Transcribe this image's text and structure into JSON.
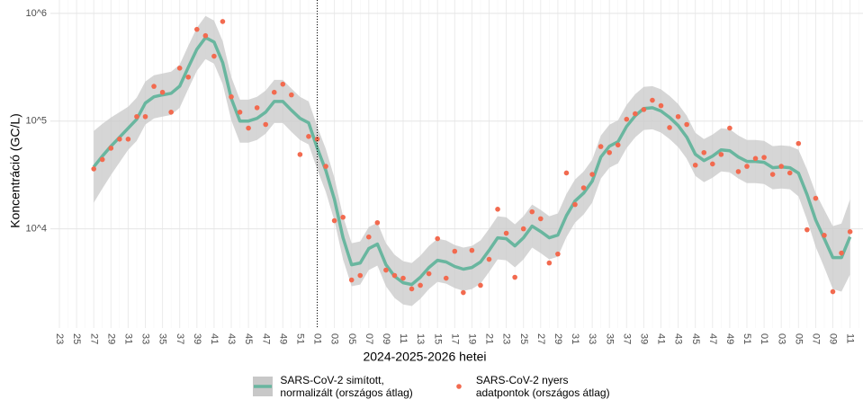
{
  "chart_data": {
    "type": "line",
    "xlabel": "2024-2025-2026 hetei",
    "ylabel": "Koncentráció (GC/L)",
    "log_scale": true,
    "grid": true,
    "legend": "bottom",
    "ylim": [
      1200,
      1330000
    ],
    "yticks": [
      {
        "value": 10000,
        "label": "10^4"
      },
      {
        "value": 100000,
        "label": "10^5"
      },
      {
        "value": 1000000,
        "label": "10^6"
      }
    ],
    "categories": [
      "23",
      null,
      "25",
      null,
      "27",
      null,
      "29",
      null,
      "31",
      null,
      "33",
      null,
      "35",
      null,
      "37",
      null,
      "39",
      null,
      "41",
      null,
      "43",
      null,
      "45",
      null,
      "47",
      null,
      "49",
      null,
      "51",
      null,
      "01",
      null,
      "03",
      null,
      "05",
      null,
      "07",
      null,
      "09",
      null,
      "11",
      null,
      "13",
      null,
      "15",
      null,
      "17",
      null,
      "19",
      null,
      "21",
      null,
      "23",
      null,
      "25",
      null,
      "27",
      null,
      "29",
      null,
      "31",
      null,
      "33",
      null,
      "35",
      null,
      "37",
      null,
      "39",
      null,
      "41",
      null,
      "43",
      null,
      "45",
      null,
      "47",
      null,
      "49",
      null,
      "51",
      null,
      "01",
      null,
      "03",
      null,
      "05",
      null,
      "07",
      null,
      "09",
      null,
      "11",
      null
    ],
    "series": [
      {
        "name": "SARS-CoV-2 simított,\n normalizált (országos átlag)",
        "type": "line",
        "color": "#69b69f",
        "band_color": "#c8c8c8",
        "values": [
          null,
          null,
          null,
          null,
          37600,
          47300,
          58400,
          70800,
          85800,
          104000,
          147000,
          168000,
          175000,
          181000,
          211000,
          316000,
          464000,
          596000,
          541000,
          348000,
          162000,
          100000,
          100000,
          106000,
          121000,
          152000,
          152000,
          126000,
          106000,
          96200,
          56200,
          34800,
          18800,
          8250,
          4640,
          4820,
          6560,
          7220,
          4640,
          3620,
          3160,
          3040,
          3550,
          4380,
          5110,
          4920,
          4470,
          4220,
          4380,
          4920,
          6310,
          8250,
          8100,
          6950,
          8250,
          10600,
          9440,
          8250,
          8740,
          13300,
          18100,
          21500,
          27700,
          46400,
          58400,
          64300,
          89100,
          112000,
          131000,
          133000,
          124000,
          108000,
          90900,
          70800,
          49200,
          43000,
          47300,
          54100,
          53100,
          46400,
          42200,
          42200,
          41400,
          36900,
          37600,
          36900,
          32900,
          20700,
          12100,
          8100,
          5410,
          5410,
          8410,
          null
        ],
        "upper": [
          null,
          null,
          null,
          null,
          81000,
          94400,
          108000,
          121000,
          136000,
          165000,
          233000,
          266000,
          277000,
          287000,
          334000,
          501000,
          735000,
          945000,
          857000,
          552000,
          257000,
          158000,
          158000,
          168000,
          192000,
          241000,
          241000,
          200000,
          168000,
          152000,
          89100,
          55200,
          29800,
          13100,
          7350,
          7640,
          10400,
          11400,
          7350,
          5740,
          5010,
          4820,
          5630,
          6940,
          8100,
          7800,
          7080,
          6690,
          6940,
          7800,
          10000,
          13100,
          12800,
          11000,
          13100,
          16800,
          15000,
          13100,
          13900,
          21100,
          28700,
          34100,
          43900,
          73500,
          92600,
          102000,
          141000,
          178000,
          208000,
          211000,
          197000,
          171000,
          144000,
          112000,
          78000,
          68200,
          75000,
          85700,
          84200,
          73500,
          66900,
          66900,
          65600,
          58500,
          59600,
          58500,
          54200,
          35400,
          21500,
          15000,
          10600,
          11200,
          18800,
          null
        ],
        "lower": [
          null,
          null,
          null,
          null,
          17500,
          23700,
          31600,
          41400,
          54100,
          65600,
          92800,
          106000,
          110000,
          114000,
          133000,
          199000,
          293000,
          376000,
          341000,
          220000,
          102000,
          63100,
          63100,
          66900,
          76400,
          95900,
          95900,
          79500,
          66900,
          60700,
          35500,
          22000,
          11900,
          5210,
          2930,
          3040,
          4140,
          4560,
          2930,
          2280,
          1990,
          1920,
          2240,
          2760,
          3220,
          3100,
          2820,
          2660,
          2760,
          3100,
          3980,
          5210,
          5110,
          4390,
          5210,
          6690,
          5960,
          5210,
          5510,
          8390,
          11400,
          13600,
          17500,
          29300,
          36900,
          40600,
          56200,
          70700,
          82700,
          83900,
          78200,
          68100,
          57400,
          44700,
          31000,
          27100,
          29800,
          34100,
          33500,
          29300,
          26600,
          26600,
          26100,
          23300,
          23700,
          23300,
          20000,
          12100,
          6810,
          4380,
          2760,
          2610,
          3760,
          null
        ]
      },
      {
        "name": "SARS-CoV-2 nyers\n adatpontok (országos átlag)",
        "type": "scatter",
        "color": "#f26a4f",
        "values": [
          null,
          null,
          null,
          null,
          36000,
          44000,
          56000,
          68000,
          68000,
          110000,
          110000,
          210000,
          185000,
          121000,
          310000,
          256000,
          710000,
          620000,
          400000,
          840000,
          168000,
          121000,
          86000,
          133000,
          93000,
          185000,
          220000,
          175000,
          49000,
          72000,
          68000,
          38000,
          11900,
          12800,
          3350,
          3690,
          8400,
          11400,
          4140,
          3690,
          3480,
          2770,
          2990,
          3830,
          8100,
          3480,
          6190,
          2560,
          6310,
          2990,
          5210,
          15200,
          9100,
          3550,
          10000,
          14400,
          12400,
          4820,
          5840,
          33000,
          16800,
          24000,
          32000,
          58000,
          51000,
          60000,
          104000,
          117000,
          128000,
          156000,
          139000,
          87000,
          110000,
          93000,
          39000,
          51000,
          40000,
          49000,
          86000,
          34000,
          38000,
          45000,
          46000,
          32000,
          38000,
          33000,
          62000,
          9800,
          19200,
          8700,
          2610,
          5960,
          9400,
          null
        ]
      }
    ]
  }
}
